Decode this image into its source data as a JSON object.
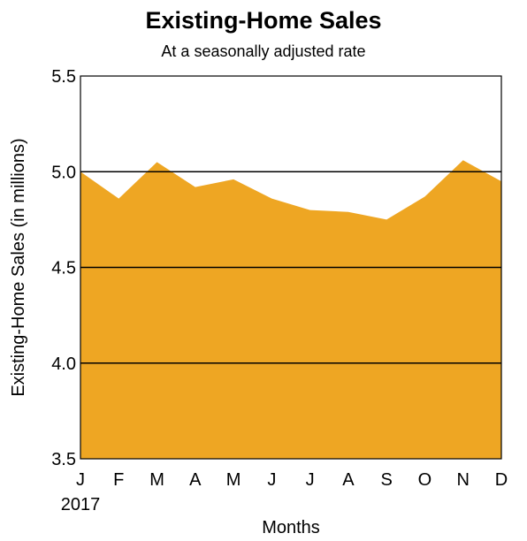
{
  "chart_data": {
    "type": "area",
    "title": "Existing-Home Sales",
    "subtitle": "At a seasonally adjusted rate",
    "xlabel": "Months",
    "ylabel": "Existing-Home Sales (in millions)",
    "categories": [
      "J",
      "F",
      "M",
      "A",
      "M",
      "J",
      "J",
      "A",
      "S",
      "O",
      "N",
      "D"
    ],
    "year_label": "2017",
    "values": [
      5.0,
      4.86,
      5.05,
      4.92,
      4.96,
      4.86,
      4.8,
      4.79,
      4.75,
      4.87,
      5.06,
      4.95
    ],
    "ylim": [
      3.5,
      5.5
    ],
    "yticks": [
      "3.5",
      "4.0",
      "4.5",
      "5.0",
      "5.5"
    ],
    "grid": true,
    "legend": "none",
    "colors": {
      "area": "#EEA623",
      "grid": "#000000"
    }
  }
}
